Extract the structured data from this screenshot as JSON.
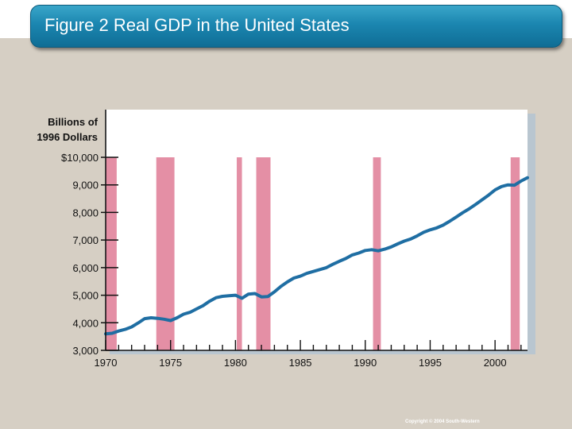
{
  "slide": {
    "title": "Figure 2 Real GDP in the United States",
    "copyright": "Copyright © 2004  South-Western"
  },
  "colors": {
    "line": "#1f6ea3",
    "recession": "#e48fa5",
    "title_bar": "#1b86b0"
  },
  "chart_data": {
    "type": "line",
    "title": "Real GDP in the United States",
    "ylabel_line1": "Billions of",
    "ylabel_line2": "1996 Dollars",
    "xlabel": "",
    "xlim": [
      1970,
      2002.5
    ],
    "ylim": [
      3000,
      10000
    ],
    "y_ticks": [
      {
        "value": 3000,
        "label": "3,000"
      },
      {
        "value": 4000,
        "label": "4,000"
      },
      {
        "value": 5000,
        "label": "5,000"
      },
      {
        "value": 6000,
        "label": "6,000"
      },
      {
        "value": 7000,
        "label": "7,000"
      },
      {
        "value": 8000,
        "label": "8,000"
      },
      {
        "value": 9000,
        "label": "9,000"
      },
      {
        "value": 10000,
        "label": "$10,000"
      }
    ],
    "x_ticks": [
      {
        "value": 1970,
        "label": "1970"
      },
      {
        "value": 1975,
        "label": "1975"
      },
      {
        "value": 1980,
        "label": "1980"
      },
      {
        "value": 1985,
        "label": "1985"
      },
      {
        "value": 1990,
        "label": "1990"
      },
      {
        "value": 1995,
        "label": "1995"
      },
      {
        "value": 2000,
        "label": "2000"
      }
    ],
    "recessions": [
      {
        "start": 1970.0,
        "end": 1970.85
      },
      {
        "start": 1973.9,
        "end": 1975.3
      },
      {
        "start": 1980.1,
        "end": 1980.5
      },
      {
        "start": 1981.6,
        "end": 1982.7
      },
      {
        "start": 1990.6,
        "end": 1991.2
      },
      {
        "start": 2001.2,
        "end": 2001.9
      }
    ],
    "series": [
      {
        "name": "Real GDP",
        "x": [
          1970.0,
          1970.5,
          1971.0,
          1971.5,
          1972.0,
          1972.5,
          1973.0,
          1973.5,
          1974.0,
          1974.5,
          1975.0,
          1975.5,
          1976.0,
          1976.5,
          1977.0,
          1977.5,
          1978.0,
          1978.5,
          1979.0,
          1979.5,
          1980.0,
          1980.5,
          1981.0,
          1981.5,
          1982.0,
          1982.5,
          1983.0,
          1983.5,
          1984.0,
          1984.5,
          1985.0,
          1985.5,
          1986.0,
          1986.5,
          1987.0,
          1987.5,
          1988.0,
          1988.5,
          1989.0,
          1989.5,
          1990.0,
          1990.5,
          1991.0,
          1991.5,
          1992.0,
          1992.5,
          1993.0,
          1993.5,
          1994.0,
          1994.5,
          1995.0,
          1995.5,
          1996.0,
          1996.5,
          1997.0,
          1997.5,
          1998.0,
          1998.5,
          1999.0,
          1999.5,
          2000.0,
          2000.5,
          2001.0,
          2001.5,
          2002.0,
          2002.5
        ],
        "values": [
          3600,
          3620,
          3700,
          3760,
          3850,
          3990,
          4150,
          4180,
          4160,
          4130,
          4080,
          4180,
          4310,
          4380,
          4500,
          4620,
          4780,
          4910,
          4960,
          4980,
          5000,
          4890,
          5040,
          5060,
          4940,
          4950,
          5120,
          5320,
          5480,
          5620,
          5690,
          5790,
          5860,
          5930,
          6000,
          6120,
          6230,
          6330,
          6460,
          6530,
          6620,
          6650,
          6610,
          6670,
          6750,
          6860,
          6960,
          7040,
          7150,
          7280,
          7370,
          7440,
          7540,
          7680,
          7830,
          7990,
          8130,
          8290,
          8460,
          8630,
          8820,
          8940,
          9000,
          8990,
          9140,
          9260
        ]
      }
    ]
  }
}
